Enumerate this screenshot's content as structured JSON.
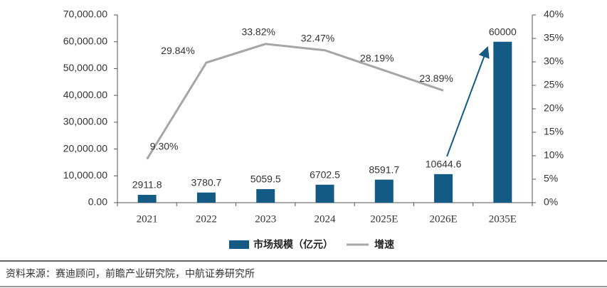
{
  "chart_data": {
    "type": "bar-line",
    "categories": [
      "2021",
      "2022",
      "2023",
      "2024",
      "2025E",
      "2026E",
      "2035E"
    ],
    "series": [
      {
        "name": "市场规模（亿元）",
        "type": "bar",
        "color": "#135b84",
        "values": [
          2911.8,
          3780.7,
          5059.5,
          6702.5,
          8591.7,
          10644.6,
          60000
        ]
      },
      {
        "name": "增速",
        "type": "line",
        "color": "#a6a6a6",
        "axis": "y2",
        "values": [
          9.3,
          29.84,
          33.82,
          32.47,
          28.19,
          23.89,
          null
        ],
        "value_labels": [
          "9.30%",
          "29.84%",
          "33.82%",
          "32.47%",
          "28.19%",
          "23.89%",
          null
        ]
      }
    ],
    "ylim": [
      0,
      70000
    ],
    "yticks": [
      {
        "value": 0,
        "label": "0.00"
      },
      {
        "value": 10000,
        "label": "10,000.00"
      },
      {
        "value": 20000,
        "label": "20,000.00"
      },
      {
        "value": 30000,
        "label": "30,000.00"
      },
      {
        "value": 40000,
        "label": "40,000.00"
      },
      {
        "value": 50000,
        "label": "50,000.00"
      },
      {
        "value": 60000,
        "label": "60,000.00"
      },
      {
        "value": 70000,
        "label": "70,000.00"
      }
    ],
    "y2lim": [
      0,
      40
    ],
    "y2ticks": [
      {
        "value": 0,
        "label": "0%"
      },
      {
        "value": 5,
        "label": "5%"
      },
      {
        "value": 10,
        "label": "10%"
      },
      {
        "value": 15,
        "label": "15%"
      },
      {
        "value": 20,
        "label": "20%"
      },
      {
        "value": 25,
        "label": "25%"
      },
      {
        "value": 30,
        "label": "30%"
      },
      {
        "value": 35,
        "label": "35%"
      },
      {
        "value": 40,
        "label": "40%"
      }
    ],
    "source": "资料来源：赛迪顾问，前瞻产业研究院，中航证券研究所"
  }
}
